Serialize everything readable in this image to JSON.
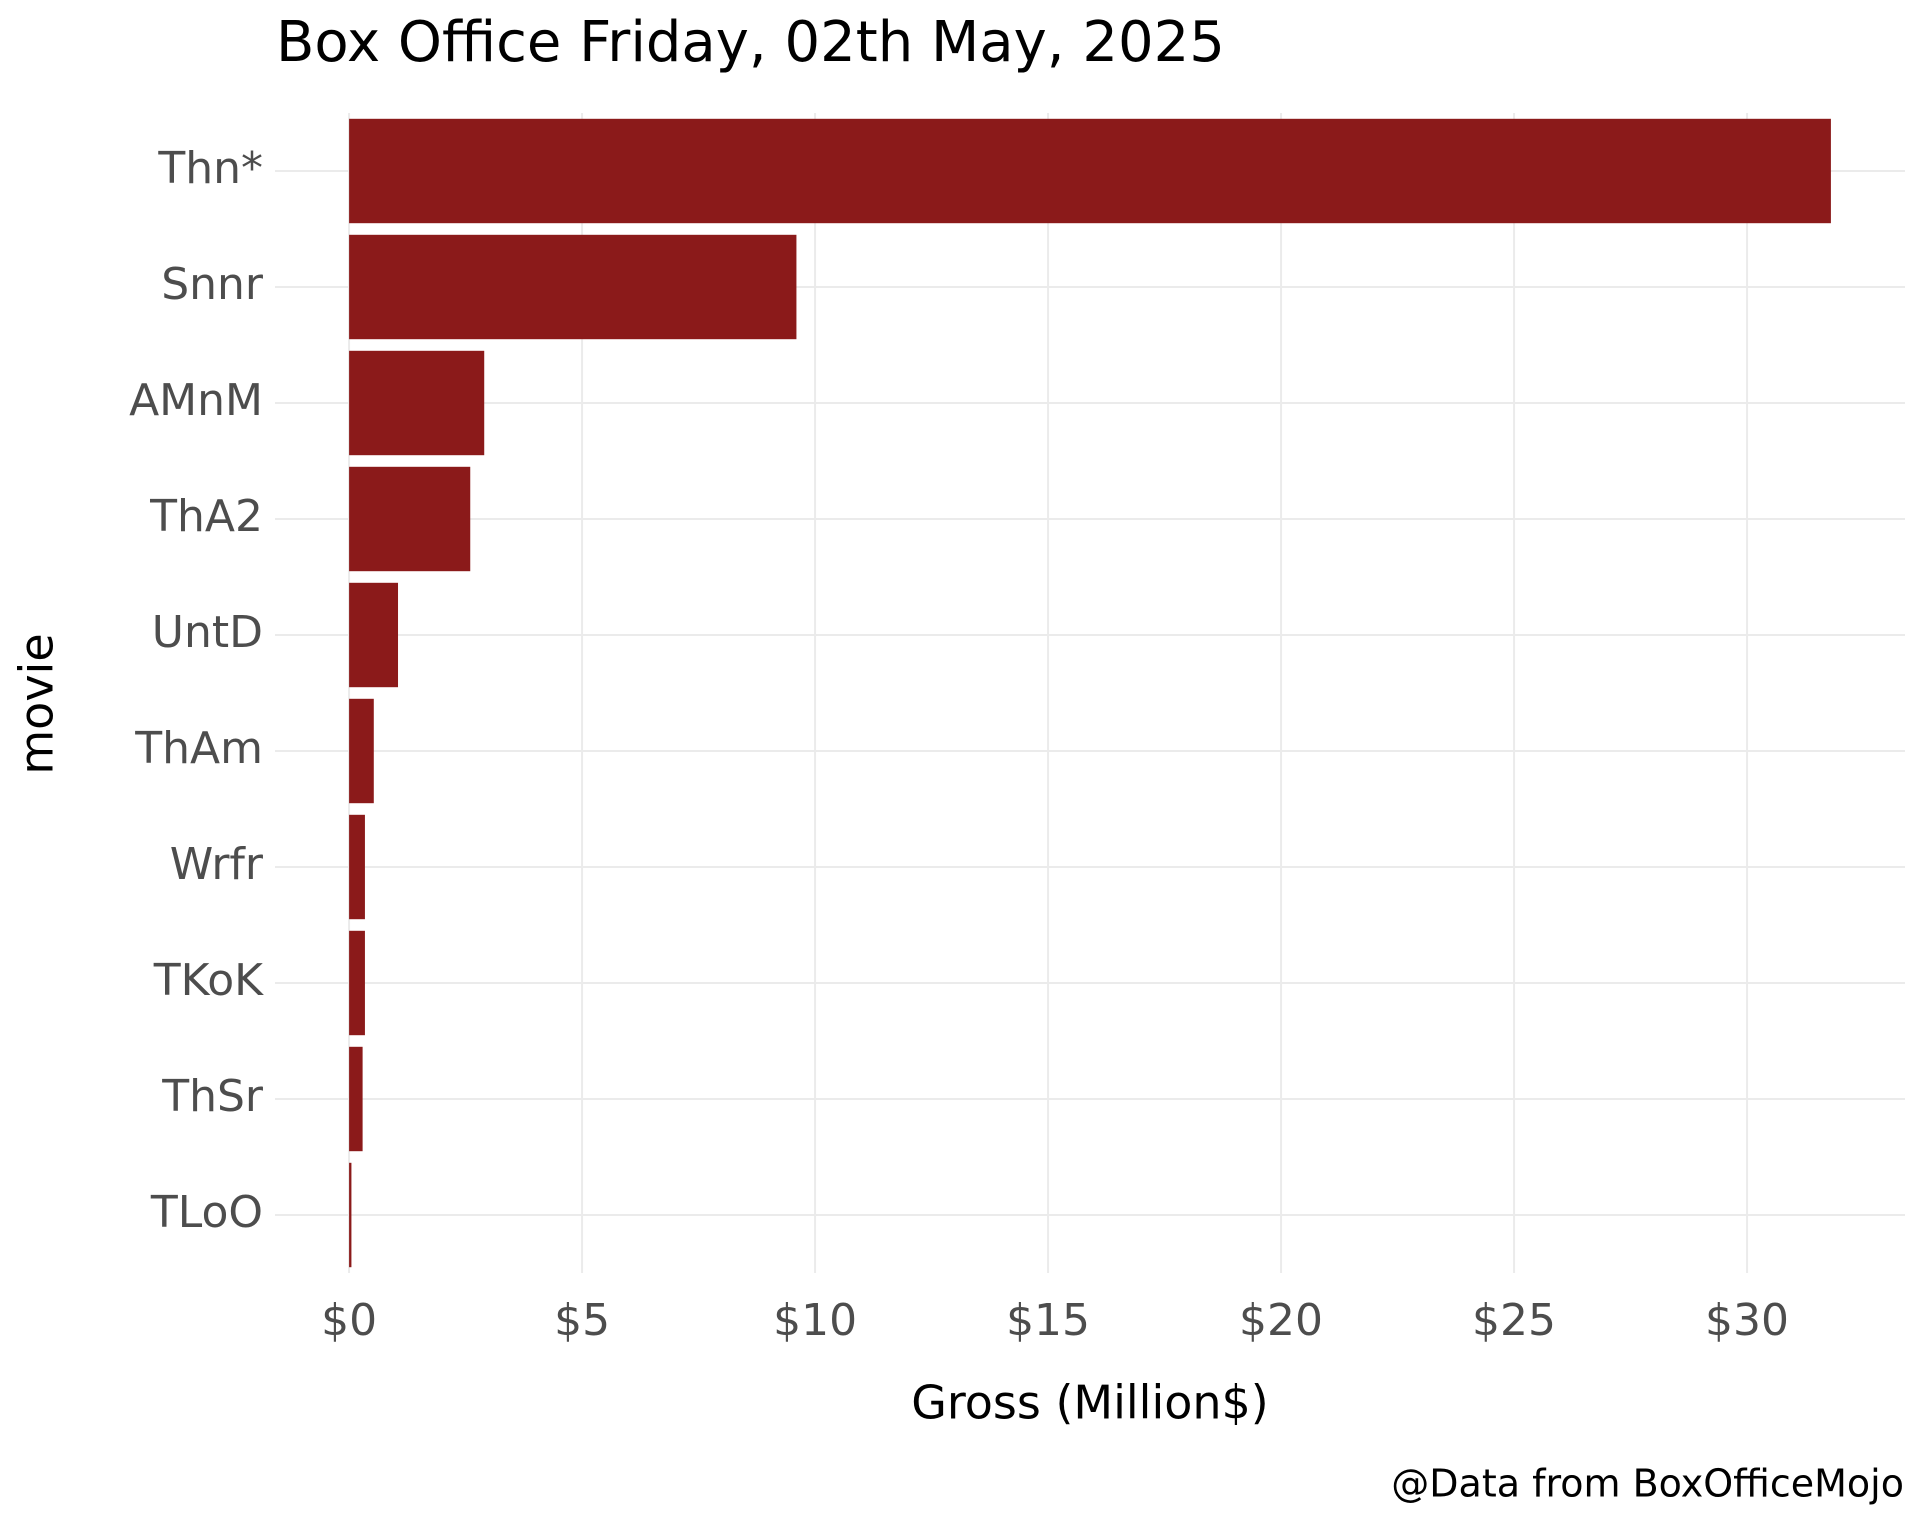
{
  "chart_data": {
    "type": "barh",
    "title": "Box Office Friday, 02th May, 2025",
    "x_label": "Gross (Million$)",
    "y_label": "movie",
    "caption": "@Data from BoxOfficeMojo",
    "categories": [
      "Thn*",
      "Snnr",
      "AMnM",
      "ThA2",
      "UntD",
      "ThAm",
      "Wrfr",
      "TKoK",
      "ThSr",
      "TLoO"
    ],
    "values": [
      31.8,
      9.6,
      2.9,
      2.6,
      1.05,
      0.53,
      0.34,
      0.34,
      0.29,
      0.05
    ],
    "color": "#8b1a1a",
    "xlim": [
      -1.59,
      33.39
    ],
    "xticks": [
      {
        "value": 0,
        "label": "$0"
      },
      {
        "value": 5,
        "label": "$5"
      },
      {
        "value": 10,
        "label": "$10"
      },
      {
        "value": 15,
        "label": "$15"
      },
      {
        "value": 20,
        "label": "$20"
      },
      {
        "value": 25,
        "label": "$25"
      },
      {
        "value": 30,
        "label": "$30"
      }
    ],
    "grid": true
  }
}
